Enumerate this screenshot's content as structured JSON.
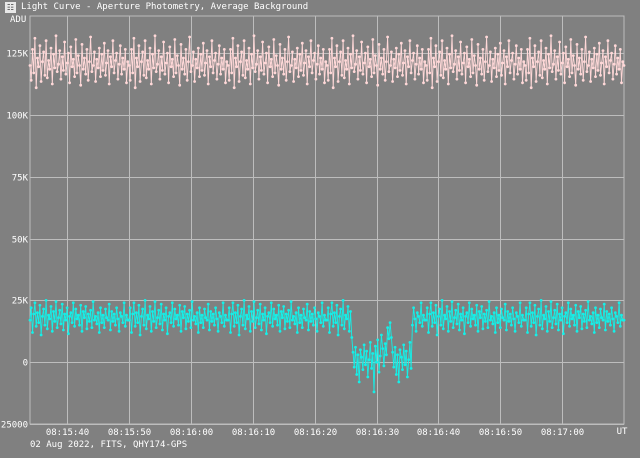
{
  "window": {
    "title": "Light Curve - Aperture Photometry, Average Background",
    "icon": "app-icon"
  },
  "footer": {
    "caption": "02 Aug 2022, FITS, QHY174-GPS"
  },
  "colors": {
    "background": "#808080",
    "grid": "#bdbdbd",
    "series_target": "#ffd8d8",
    "series_background": "#14f0e8"
  },
  "chart_data": {
    "type": "line",
    "title": "",
    "xlabel": "UT",
    "ylabel": "ADU",
    "x_unit": "time (UT)",
    "xlim": [
      "08:15:34",
      "08:17:10"
    ],
    "ylim": [
      -25000,
      140000
    ],
    "y_ticks": [
      -25000,
      0,
      25000,
      50000,
      75000,
      100000,
      125000
    ],
    "y_tick_labels": [
      "-25000",
      "0",
      "25K",
      "50K",
      "75K",
      "100K",
      "125K"
    ],
    "x_ticks": [
      "08:15:40",
      "08:15:50",
      "08:16:00",
      "08:16:10",
      "08:16:20",
      "08:16:30",
      "08:16:40",
      "08:16:50",
      "08:17:00"
    ],
    "grid": true,
    "legend": "none",
    "cadence_s": 0.2,
    "series": [
      {
        "key": "upper",
        "color": "#ffd8d8",
        "baseline": 120000,
        "values": [
          120000,
          114000,
          126500,
          117000,
          131000,
          111000,
          123000,
          119500,
          128000,
          113500,
          121500,
          125500,
          116000,
          130000,
          115000,
          122000,
          118500,
          127000,
          112500,
          124500,
          119000,
          132000,
          117500,
          120500,
          126000,
          114500,
          123500,
          118000,
          129500,
          116500,
          121000,
          125000,
          113000,
          127500,
          119500,
          122500,
          115500,
          130500,
          117000,
          124000,
          120000,
          112000,
          128500,
          118500,
          123000,
          116500,
          126500,
          114000,
          121500,
          131500,
          117500,
          120000,
          125500,
          113500,
          122500,
          119000,
          127000,
          115500,
          124500,
          118000,
          129000,
          116000,
          121000,
          126000,
          112500,
          123500,
          119500,
          130000,
          117000,
          122000,
          125000,
          114500,
          120500,
          128000,
          116500,
          123000,
          118500,
          126500,
          113000,
          121500
        ]
      },
      {
        "key": "lower",
        "color": "#14f0e8",
        "baseline": 18000,
        "values": [
          17000,
          22000,
          12000,
          19500,
          24000,
          14500,
          20000,
          16000,
          23000,
          11000,
          18500,
          21500,
          15000,
          25000,
          13500,
          19000,
          17500,
          22500,
          12500,
          20500,
          16500,
          24500,
          14000,
          18000,
          21000,
          15500,
          23500,
          13000,
          19500,
          17000,
          22000,
          11500,
          18500,
          20000,
          16000,
          24000,
          14500,
          21500,
          17500,
          19000,
          15000,
          23000,
          12500,
          20500,
          18000,
          22500,
          13500,
          19500,
          16500,
          21000,
          14000,
          24500,
          17000,
          18500,
          15500,
          20000,
          12000,
          22000,
          16000,
          19000,
          14000,
          21500,
          18000,
          17000,
          23500,
          13000,
          20500,
          16500,
          19500,
          15000,
          22000,
          17500,
          12500,
          20000,
          18500,
          16000,
          24000,
          14500,
          19000,
          17000
        ]
      }
    ],
    "dip_sample_indices": [
      260,
      308
    ],
    "dip_values": [
      10000,
      4000,
      -2000,
      6000,
      -5000,
      3000,
      -8000,
      5000,
      2000,
      -3000,
      7000,
      -1000,
      4500,
      -6000,
      1000,
      8000,
      -2500,
      3500,
      -12000,
      6500,
      0,
      9000,
      -4000,
      2500,
      11000,
      5500,
      -1500,
      7500,
      3000,
      14000,
      9500,
      16000
    ]
  }
}
